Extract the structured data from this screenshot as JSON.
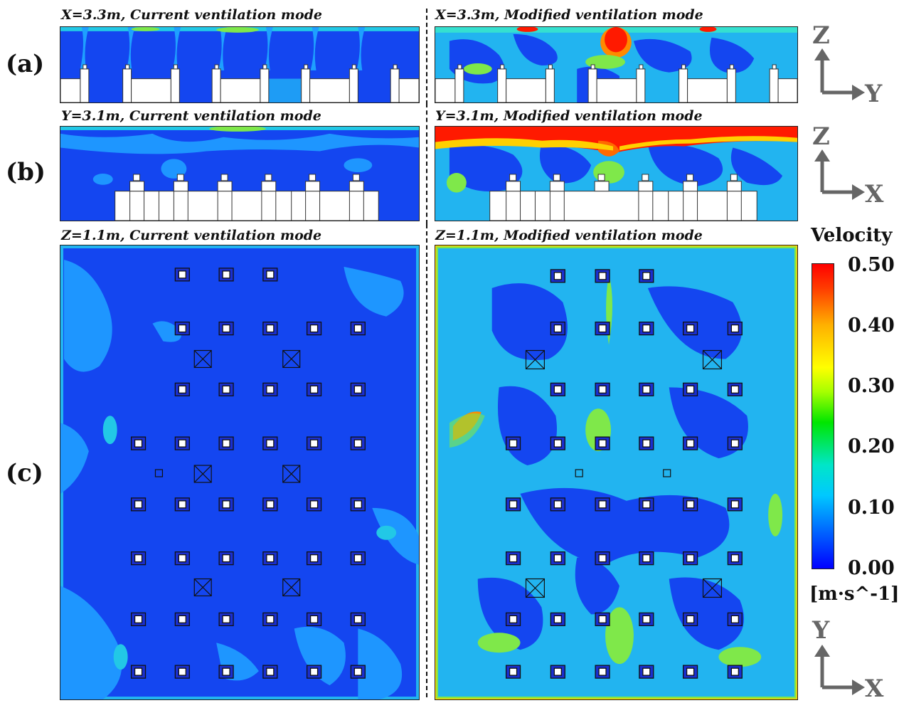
{
  "panel_labels": [
    "(a)",
    "(b)",
    "(c)"
  ],
  "titles": {
    "a_left": "X=3.3m, Current ventilation mode",
    "a_right": "X=3.3m, Modified ventilation mode",
    "b_left": "Y=3.1m, Current ventilation mode",
    "b_right": "Y=3.1m, Modified ventilation mode",
    "c_left": "Z=1.1m, Current ventilation mode",
    "c_right": "Z=1.1m, Modified ventilation mode"
  },
  "colorbar": {
    "title": "Velocity",
    "unit": "[m·s^-1]",
    "ticks": [
      "0.50",
      "0.40",
      "0.30",
      "0.20",
      "0.10",
      "0.00"
    ],
    "range": [
      0.0,
      0.5
    ],
    "colors": [
      "#0000ff",
      "#0064ff",
      "#00c8ff",
      "#00e6c8",
      "#00e600",
      "#a6ff00",
      "#ffff00",
      "#ffb000",
      "#ff3c00",
      "#ff0000"
    ]
  },
  "axes": {
    "a": {
      "vertical": "Z",
      "horizontal": "Y"
    },
    "b": {
      "vertical": "Z",
      "horizontal": "X"
    },
    "c": {
      "vertical": "Y",
      "horizontal": "X"
    }
  }
}
